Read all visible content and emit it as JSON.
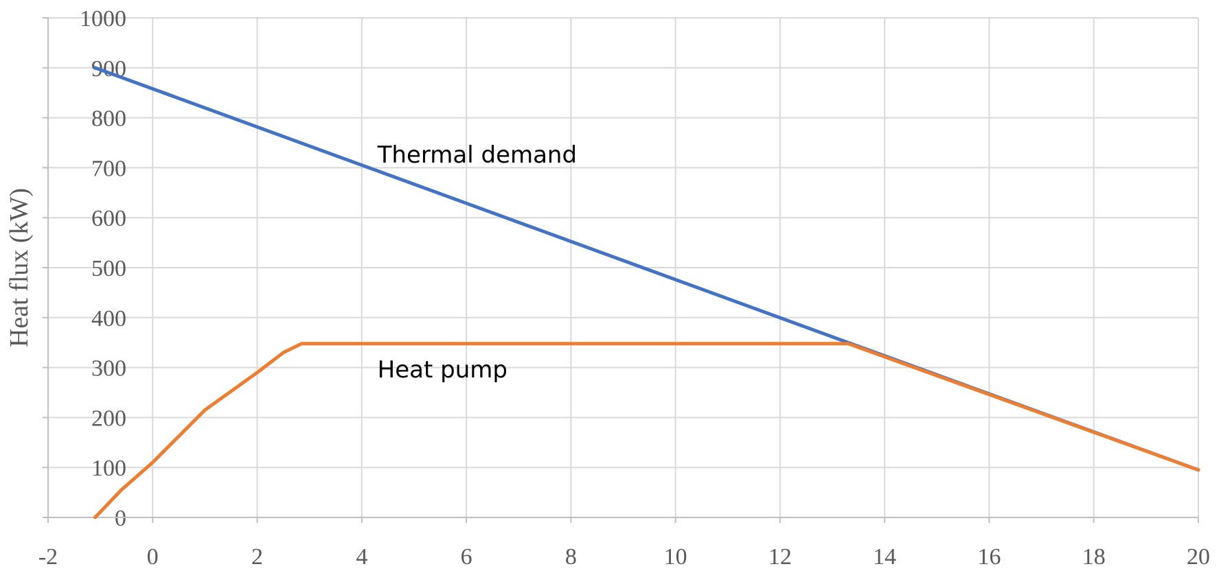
{
  "chart_data": {
    "type": "line",
    "title": "",
    "xlabel": "",
    "ylabel": "Heat flux (kW)",
    "xlim": [
      -2,
      20
    ],
    "ylim": [
      0,
      1000
    ],
    "x_ticks": [
      -2,
      0,
      2,
      4,
      6,
      8,
      10,
      12,
      14,
      16,
      18,
      20
    ],
    "y_ticks": [
      0,
      100,
      200,
      300,
      400,
      500,
      600,
      700,
      800,
      900,
      1000
    ],
    "grid": true,
    "legend": "none",
    "series": [
      {
        "name": "Thermal demand",
        "color": "#4472c4",
        "points": [
          [
            -1.1,
            900
          ],
          [
            13.3,
            350
          ],
          [
            20,
            95
          ]
        ]
      },
      {
        "name": "Heat pump",
        "color": "#ed7d31",
        "points": [
          [
            -1.1,
            0
          ],
          [
            -0.6,
            55
          ],
          [
            0,
            110
          ],
          [
            1,
            215
          ],
          [
            2,
            290
          ],
          [
            2.5,
            330
          ],
          [
            2.85,
            348
          ],
          [
            13.3,
            348
          ],
          [
            20,
            95
          ]
        ]
      }
    ],
    "annotations": [
      {
        "text": "Thermal demand",
        "x": 4.3,
        "y": 710
      },
      {
        "text": "Heat pump",
        "x": 4.3,
        "y": 280
      }
    ]
  }
}
